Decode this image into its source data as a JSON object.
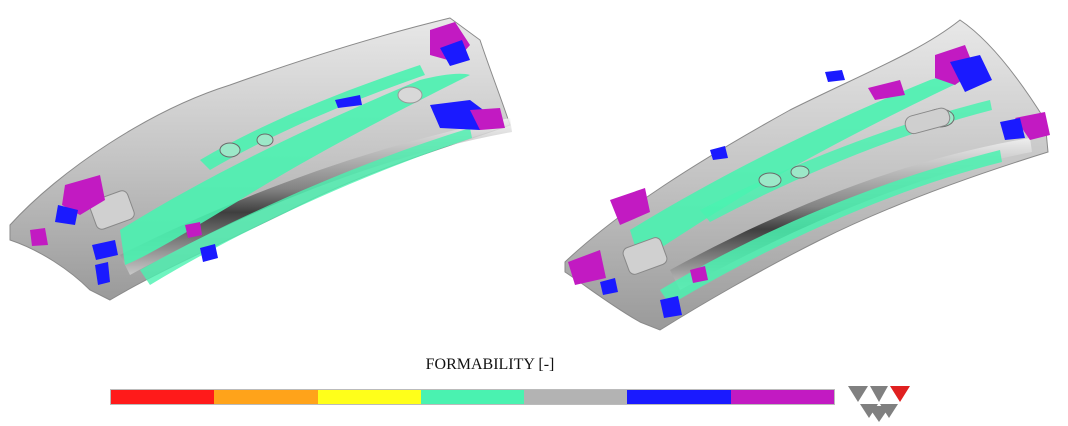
{
  "legend": {
    "title": "FORMABILITY [-]",
    "segments": [
      {
        "label": "",
        "color": "#ff1a1a"
      },
      {
        "label": "",
        "color": "#ffa31a"
      },
      {
        "label": "",
        "color": "#ffff1a"
      },
      {
        "label": "",
        "color": "#4af2b0"
      },
      {
        "label": "",
        "color": "#b3b3b3"
      },
      {
        "label": "",
        "color": "#1a1aff"
      },
      {
        "label": "",
        "color": "#c21ac2"
      }
    ]
  },
  "colors": {
    "part_gray": "#c8c8c8",
    "safe_green": "#4af2b0",
    "insufficient_stretch_blue": "#1a1aff",
    "wrinkling_magenta": "#c21ac2",
    "logo_gray": "#808080",
    "logo_red": "#e02020"
  },
  "icons": {
    "logo": "triangle-logo-icon"
  }
}
